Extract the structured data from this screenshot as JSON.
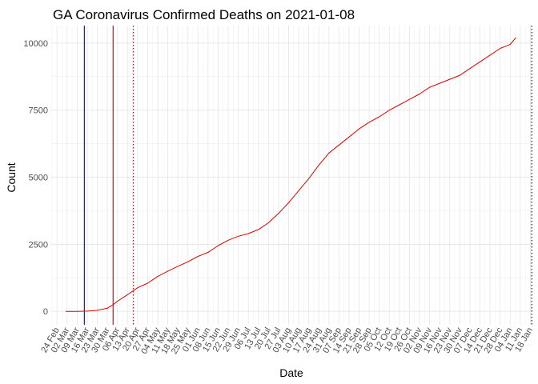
{
  "chart_data": {
    "type": "line",
    "title": "GA Coronavirus Confirmed Deaths on 2021-01-08",
    "xlabel": "Date",
    "ylabel": "Count",
    "x_type": "date",
    "xlim": [
      "2020-02-20",
      "2021-01-20"
    ],
    "ylim": [
      -500,
      10650
    ],
    "yticks": [
      0,
      2500,
      5000,
      7500,
      10000
    ],
    "ytick_labels": [
      "0",
      "2500",
      "5000",
      "7500",
      "10000"
    ],
    "xticks": [
      "2020-02-24",
      "2020-03-02",
      "2020-03-09",
      "2020-03-16",
      "2020-03-23",
      "2020-03-30",
      "2020-04-06",
      "2020-04-13",
      "2020-04-20",
      "2020-04-27",
      "2020-05-04",
      "2020-05-11",
      "2020-05-18",
      "2020-05-25",
      "2020-06-01",
      "2020-06-08",
      "2020-06-15",
      "2020-06-22",
      "2020-06-29",
      "2020-07-06",
      "2020-07-13",
      "2020-07-20",
      "2020-07-27",
      "2020-08-03",
      "2020-08-10",
      "2020-08-17",
      "2020-08-24",
      "2020-08-31",
      "2020-09-07",
      "2020-09-14",
      "2020-09-21",
      "2020-09-28",
      "2020-10-05",
      "2020-10-12",
      "2020-10-19",
      "2020-10-26",
      "2020-11-02",
      "2020-11-09",
      "2020-11-16",
      "2020-11-23",
      "2020-11-30",
      "2020-12-07",
      "2020-12-14",
      "2020-12-21",
      "2020-12-28",
      "2021-01-04",
      "2021-01-11",
      "2021-01-18"
    ],
    "xtick_labels": [
      "24 Feb",
      "02 Mar",
      "09 Mar",
      "16 Mar",
      "23 Mar",
      "30 Mar",
      "06 Apr",
      "13 Apr",
      "20 Apr",
      "27 Apr",
      "04 May",
      "11 May",
      "18 May",
      "25 May",
      "01 Jun",
      "08 Jun",
      "15 Jun",
      "22 Jun",
      "29 Jun",
      "06 Jul",
      "13 Jul",
      "20 Jul",
      "27 Jul",
      "03 Aug",
      "10 Aug",
      "17 Aug",
      "24 Aug",
      "31 Aug",
      "07 Sep",
      "14 Sep",
      "21 Sep",
      "28 Sep",
      "05 Oct",
      "12 Oct",
      "19 Oct",
      "26 Oct",
      "02 Nov",
      "09 Nov",
      "16 Nov",
      "23 Nov",
      "30 Nov",
      "07 Dec",
      "14 Dec",
      "21 Dec",
      "28 Dec",
      "04 Jan",
      "11 Jan",
      "18 Jan"
    ],
    "grid": true,
    "vlines": [
      {
        "x": "2020-03-14",
        "style": "solid",
        "color": "#0000cc"
      },
      {
        "x": "2020-04-03",
        "style": "solid",
        "color": "#cc0000"
      },
      {
        "x": "2020-04-17",
        "style": "dotted",
        "color": "#cc0000"
      },
      {
        "x": "2021-01-19",
        "style": "dotted",
        "color": "#000000"
      }
    ],
    "series": [
      {
        "color": "#dd0000",
        "x": [
          "2020-03-01",
          "2020-03-09",
          "2020-03-16",
          "2020-03-23",
          "2020-03-30",
          "2020-04-03",
          "2020-04-06",
          "2020-04-13",
          "2020-04-20",
          "2020-04-27",
          "2020-05-04",
          "2020-05-11",
          "2020-05-18",
          "2020-05-25",
          "2020-06-01",
          "2020-06-08",
          "2020-06-15",
          "2020-06-22",
          "2020-06-29",
          "2020-07-06",
          "2020-07-13",
          "2020-07-20",
          "2020-07-27",
          "2020-08-03",
          "2020-08-10",
          "2020-08-17",
          "2020-08-24",
          "2020-08-31",
          "2020-09-07",
          "2020-09-14",
          "2020-09-21",
          "2020-09-28",
          "2020-10-05",
          "2020-10-12",
          "2020-10-19",
          "2020-10-26",
          "2020-11-02",
          "2020-11-09",
          "2020-11-16",
          "2020-11-23",
          "2020-11-30",
          "2020-12-07",
          "2020-12-14",
          "2020-12-21",
          "2020-12-28",
          "2021-01-04",
          "2021-01-08"
        ],
        "y": [
          0,
          0,
          10,
          40,
          120,
          250,
          380,
          620,
          880,
          1050,
          1300,
          1500,
          1680,
          1850,
          2050,
          2200,
          2450,
          2650,
          2800,
          2900,
          3050,
          3300,
          3650,
          4050,
          4500,
          4950,
          5450,
          5900,
          6200,
          6500,
          6800,
          7050,
          7250,
          7500,
          7700,
          7900,
          8100,
          8350,
          8500,
          8650,
          8800,
          9050,
          9300,
          9550,
          9800,
          9950,
          10200
        ]
      }
    ]
  }
}
